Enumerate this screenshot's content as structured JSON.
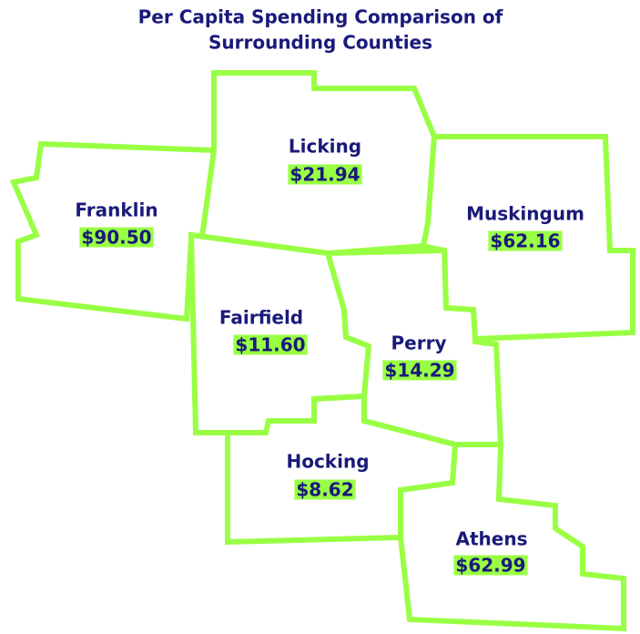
{
  "title": [
    "Per Capita Spending Comparison of",
    "Surrounding Counties"
  ],
  "counties": [
    {
      "name": "Franklin",
      "spending": "$90.50"
    },
    {
      "name": "Licking",
      "spending": "$21.94"
    },
    {
      "name": "Muskingum",
      "spending": "$62.16"
    },
    {
      "name": "Fairfield",
      "spending": "$11.60"
    },
    {
      "name": "Perry",
      "spending": "$14.29"
    },
    {
      "name": "Hocking",
      "spending": "$8.62"
    },
    {
      "name": "Athens",
      "spending": "$62.99"
    }
  ]
}
